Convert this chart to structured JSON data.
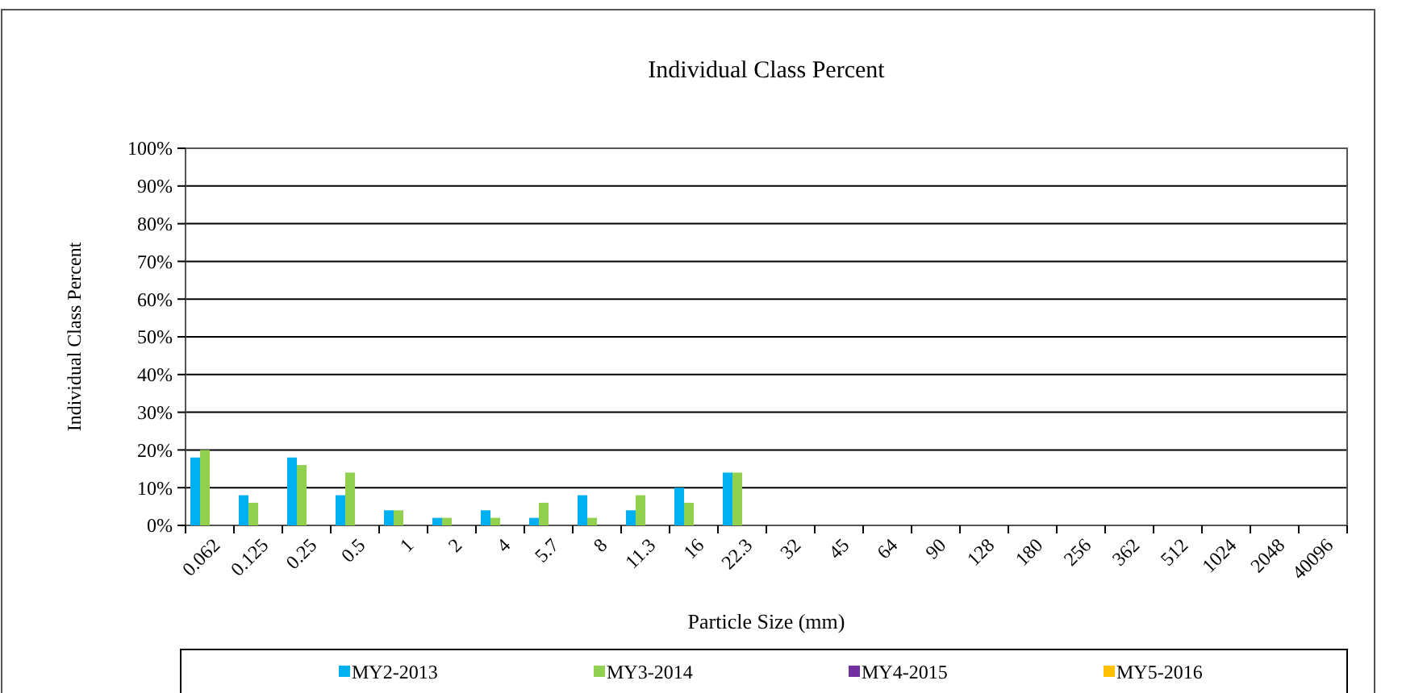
{
  "chart_data": {
    "type": "bar",
    "title": "Individual Class Percent",
    "xlabel": "Particle Size (mm)",
    "ylabel": "Individual Class Percent",
    "categories": [
      "0.062",
      "0.125",
      "0.25",
      "0.5",
      "1",
      "2",
      "4",
      "5.7",
      "8",
      "11.3",
      "16",
      "22.3",
      "32",
      "45",
      "64",
      "90",
      "128",
      "180",
      "256",
      "362",
      "512",
      "1024",
      "2048",
      "40096"
    ],
    "series": [
      {
        "name": "MY2-2013",
        "color": "#00b0f0",
        "values": [
          18,
          8,
          18,
          8,
          4,
          2,
          4,
          2,
          8,
          4,
          10,
          14,
          null,
          null,
          null,
          null,
          null,
          null,
          null,
          null,
          null,
          null,
          null,
          null
        ]
      },
      {
        "name": "MY3-2014",
        "color": "#92d050",
        "values": [
          20,
          6,
          16,
          14,
          4,
          2,
          2,
          6,
          2,
          8,
          6,
          14,
          null,
          null,
          null,
          null,
          null,
          null,
          null,
          null,
          null,
          null,
          null,
          null
        ]
      },
      {
        "name": "MY4-2015",
        "color": "#7030a0",
        "values": [
          null,
          null,
          null,
          null,
          null,
          null,
          null,
          null,
          null,
          null,
          null,
          null,
          null,
          null,
          null,
          null,
          null,
          null,
          null,
          null,
          null,
          null,
          null,
          null
        ]
      },
      {
        "name": "MY5-2016",
        "color": "#ffc000",
        "values": [
          null,
          null,
          null,
          null,
          null,
          null,
          null,
          null,
          null,
          null,
          null,
          null,
          null,
          null,
          null,
          null,
          null,
          null,
          null,
          null,
          null,
          null,
          null,
          null
        ]
      }
    ],
    "ylim": [
      0,
      100
    ],
    "yticks": [
      {
        "value": 0,
        "label": "0%"
      },
      {
        "value": 10,
        "label": "10%"
      },
      {
        "value": 20,
        "label": "20%"
      },
      {
        "value": 30,
        "label": "30%"
      },
      {
        "value": 40,
        "label": "40%"
      },
      {
        "value": 50,
        "label": "50%"
      },
      {
        "value": 60,
        "label": "60%"
      },
      {
        "value": 70,
        "label": "70%"
      },
      {
        "value": 80,
        "label": "80%"
      },
      {
        "value": 90,
        "label": "90%"
      },
      {
        "value": 100,
        "label": "100%"
      }
    ],
    "grid": "y",
    "legend": "bottom"
  }
}
